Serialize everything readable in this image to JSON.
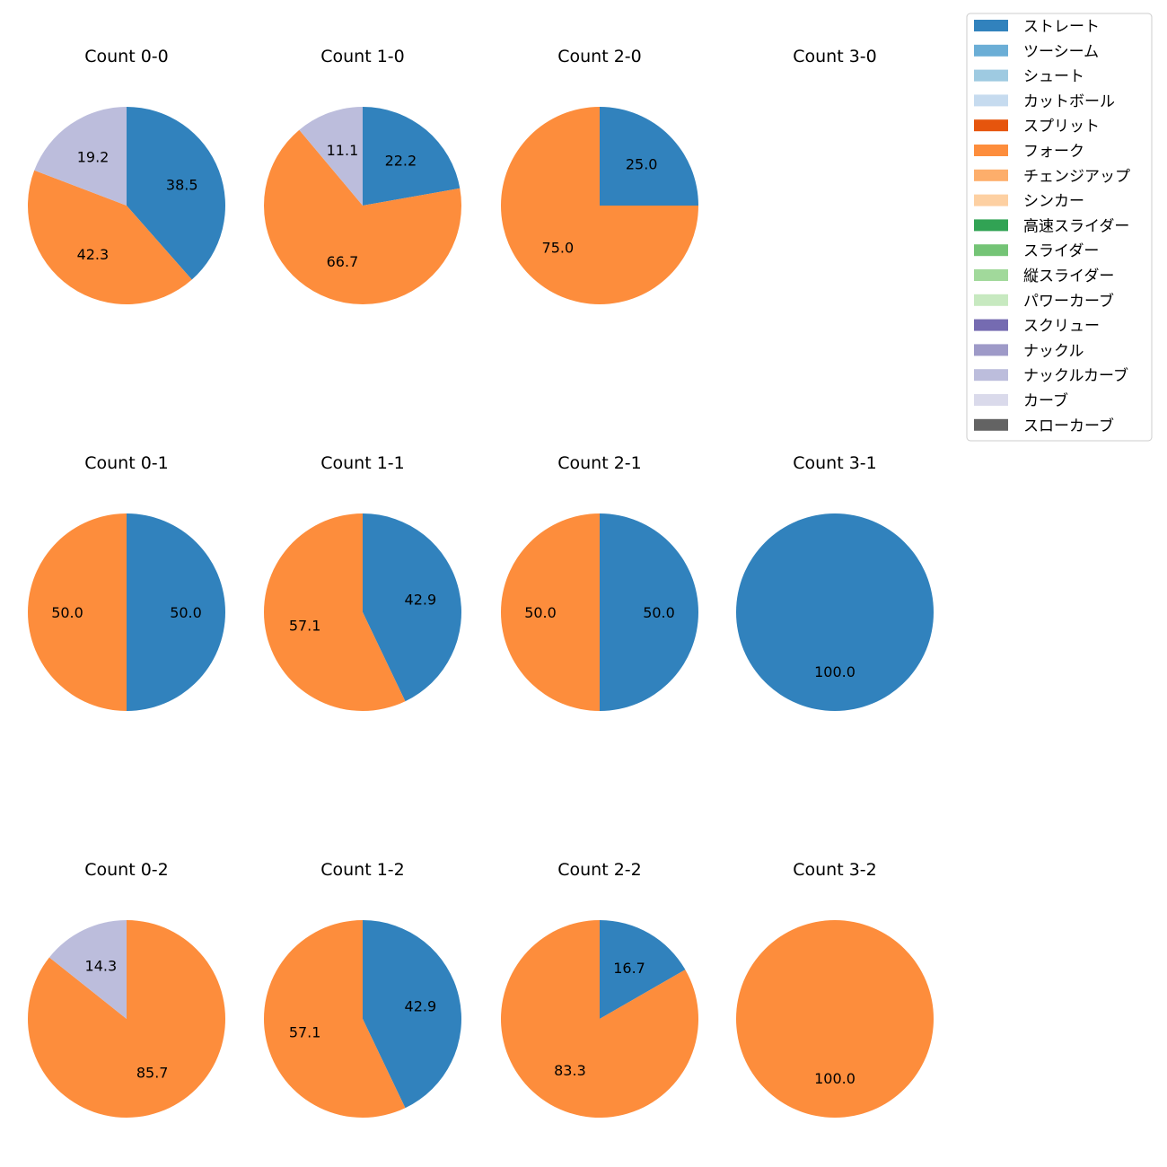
{
  "chart_data": {
    "type": "pie",
    "legend_position": "top-right",
    "categories": [
      "ストレート",
      "ツーシーム",
      "シュート",
      "カットボール",
      "スプリット",
      "フォーク",
      "チェンジアップ",
      "シンカー",
      "高速スライダー",
      "スライダー",
      "縦スライダー",
      "パワーカーブ",
      "スクリュー",
      "ナックル",
      "ナックルカーブ",
      "カーブ",
      "スローカーブ"
    ],
    "colors": [
      "#3182bd",
      "#6baed6",
      "#9ecae1",
      "#c6dbef",
      "#e6550d",
      "#fd8d3c",
      "#fdae6b",
      "#fdd0a2",
      "#31a354",
      "#74c476",
      "#a1d99b",
      "#c7e9c0",
      "#756bb1",
      "#9e9ac8",
      "#bcbddc",
      "#dadaeb",
      "#636363"
    ],
    "panels": [
      {
        "title": "Count 0-0",
        "slices": [
          {
            "category": "ストレート",
            "value": 38.5,
            "label": "38.5"
          },
          {
            "category": "フォーク",
            "value": 42.3,
            "label": "42.3"
          },
          {
            "category": "ナックルカーブ",
            "value": 19.2,
            "label": "19.2"
          }
        ]
      },
      {
        "title": "Count 1-0",
        "slices": [
          {
            "category": "ストレート",
            "value": 22.2,
            "label": "22.2"
          },
          {
            "category": "フォーク",
            "value": 66.7,
            "label": "66.7"
          },
          {
            "category": "ナックルカーブ",
            "value": 11.1,
            "label": "11.1"
          }
        ]
      },
      {
        "title": "Count 2-0",
        "slices": [
          {
            "category": "ストレート",
            "value": 25.0,
            "label": "25.0"
          },
          {
            "category": "フォーク",
            "value": 75.0,
            "label": "75.0"
          }
        ]
      },
      {
        "title": "Count 3-0",
        "slices": []
      },
      {
        "title": "Count 0-1",
        "slices": [
          {
            "category": "ストレート",
            "value": 50.0,
            "label": "50.0"
          },
          {
            "category": "フォーク",
            "value": 50.0,
            "label": "50.0"
          }
        ]
      },
      {
        "title": "Count 1-1",
        "slices": [
          {
            "category": "ストレート",
            "value": 42.9,
            "label": "42.9"
          },
          {
            "category": "フォーク",
            "value": 57.1,
            "label": "57.1"
          }
        ]
      },
      {
        "title": "Count 2-1",
        "slices": [
          {
            "category": "ストレート",
            "value": 50.0,
            "label": "50.0"
          },
          {
            "category": "フォーク",
            "value": 50.0,
            "label": "50.0"
          }
        ]
      },
      {
        "title": "Count 3-1",
        "slices": [
          {
            "category": "ストレート",
            "value": 100.0,
            "label": "100.0"
          }
        ]
      },
      {
        "title": "Count 0-2",
        "slices": [
          {
            "category": "フォーク",
            "value": 85.7,
            "label": "85.7"
          },
          {
            "category": "ナックルカーブ",
            "value": 14.3,
            "label": "14.3"
          }
        ]
      },
      {
        "title": "Count 1-2",
        "slices": [
          {
            "category": "ストレート",
            "value": 42.9,
            "label": "42.9"
          },
          {
            "category": "フォーク",
            "value": 57.1,
            "label": "57.1"
          }
        ]
      },
      {
        "title": "Count 2-2",
        "slices": [
          {
            "category": "ストレート",
            "value": 16.7,
            "label": "16.7"
          },
          {
            "category": "フォーク",
            "value": 83.3,
            "label": "83.3"
          }
        ]
      },
      {
        "title": "Count 3-2",
        "slices": [
          {
            "category": "フォーク",
            "value": 100.0,
            "label": "100.0"
          }
        ]
      }
    ]
  }
}
